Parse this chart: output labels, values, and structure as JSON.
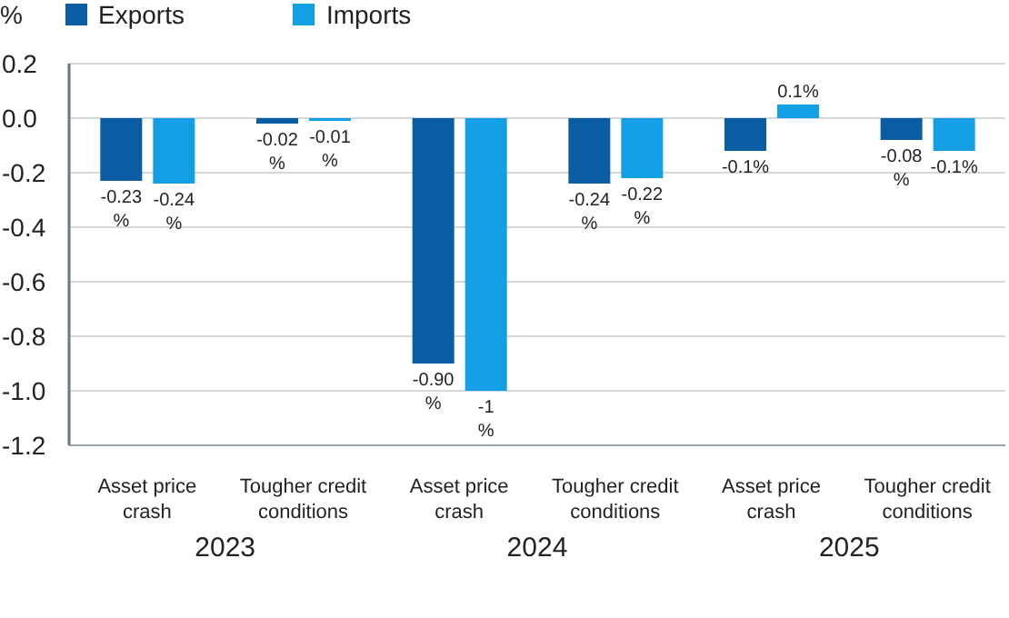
{
  "chart_data": {
    "type": "bar",
    "ylabel": "%",
    "categories": [
      "Asset price crash",
      "Tougher credit conditions",
      "Asset price crash",
      "Tougher credit conditions",
      "Asset price crash",
      "Tougher credit conditions"
    ],
    "series": [
      {
        "name": "Exports",
        "color": "#0a5ca3",
        "values": [
          -0.23,
          -0.02,
          -0.9,
          -0.24,
          -0.12,
          -0.08
        ],
        "value_labels": [
          "-0.23 %",
          "-0.02 %",
          "-0.90 %",
          "-0.24 %",
          "-0.1%",
          "-0.08 %"
        ]
      },
      {
        "name": "Imports",
        "color": "#139fe3",
        "values": [
          -0.24,
          -0.01,
          -1,
          -0.22,
          0.05,
          -0.12
        ],
        "value_labels": [
          "-0.24 %",
          "-0.01 %",
          "-1 %",
          "-0.22 %",
          "0.1%",
          "-0.1%"
        ]
      }
    ],
    "ylim": [
      -1.2,
      0.2
    ],
    "yticks": [
      0.2,
      {
        "value": 0,
        "label": "0.0"
      },
      -0.2,
      -0.4,
      -0.6,
      -0.8,
      {
        "value": -1,
        "label": "-1.0"
      },
      -1.2
    ],
    "grid": "y",
    "legend": "top left",
    "annotations": [
      "2023",
      "2024",
      "2025"
    ]
  }
}
